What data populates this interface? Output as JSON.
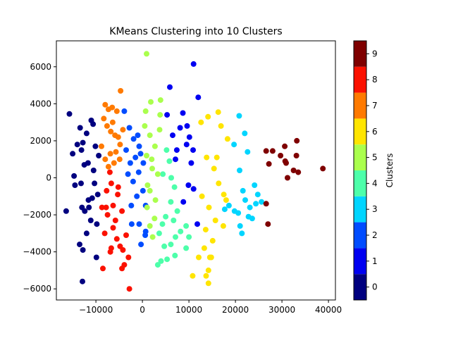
{
  "chart_data": {
    "type": "scatter",
    "title": "KMeans Clustering into 10 Clusters",
    "xlabel": "",
    "ylabel": "",
    "xlim": [
      -18500,
      41500
    ],
    "ylim": [
      -6600,
      7400
    ],
    "x_ticks": [
      -10000,
      0,
      10000,
      20000,
      30000,
      40000
    ],
    "x_tick_labels": [
      "−10000",
      "0",
      "10000",
      "20000",
      "30000",
      "40000"
    ],
    "y_ticks": [
      -6000,
      -4000,
      -2000,
      0,
      2000,
      4000,
      6000
    ],
    "y_tick_labels": [
      "−6000",
      "−4000",
      "−2000",
      "0",
      "2000",
      "4000",
      "6000"
    ],
    "grid": false,
    "colorbar": {
      "label": "Clusters",
      "ticks": [
        0,
        1,
        2,
        3,
        4,
        5,
        6,
        7,
        8,
        9
      ],
      "tick_labels": [
        "0",
        "1",
        "2",
        "3",
        "4",
        "5",
        "6",
        "7",
        "8",
        "9"
      ],
      "range": [
        -0.5,
        9.5
      ],
      "colors": [
        "#00007f",
        "#0000f1",
        "#004cff",
        "#00d5ff",
        "#4dffaa",
        "#aaff4d",
        "#ffe500",
        "#ff7a00",
        "#fb1100",
        "#7f0000"
      ]
    },
    "series": [
      {
        "cluster": 0,
        "points": [
          [
            -15700,
            3450
          ],
          [
            -15000,
            1300
          ],
          [
            -14000,
            1800
          ],
          [
            -13400,
            2700
          ],
          [
            -12800,
            1900
          ],
          [
            -12000,
            2400
          ],
          [
            -11000,
            3100
          ],
          [
            -10600,
            2900
          ],
          [
            -14500,
            -400
          ],
          [
            -13200,
            -300
          ],
          [
            -12500,
            700
          ],
          [
            -11600,
            -1200
          ],
          [
            -10500,
            400
          ],
          [
            -9600,
            -900
          ],
          [
            -12400,
            -1800
          ],
          [
            -13000,
            -1600
          ],
          [
            -11100,
            -2300
          ],
          [
            -10100,
            1700
          ],
          [
            -9800,
            -2500
          ],
          [
            -12000,
            -3000
          ],
          [
            -13500,
            -3600
          ],
          [
            -12800,
            -3900
          ],
          [
            -12900,
            -5600
          ],
          [
            -9900,
            -4300
          ],
          [
            -16400,
            -1800
          ],
          [
            -14700,
            100
          ],
          [
            -11700,
            800
          ],
          [
            -10300,
            -300
          ],
          [
            -9400,
            1200
          ],
          [
            -11500,
            -1600
          ],
          [
            -13100,
            1500
          ],
          [
            -10800,
            -1100
          ]
        ]
      },
      {
        "cluster": 1,
        "points": [
          [
            5900,
            4900
          ],
          [
            11000,
            6150
          ],
          [
            12000,
            4350
          ],
          [
            5300,
            3400
          ],
          [
            6500,
            2300
          ],
          [
            7400,
            1500
          ],
          [
            8100,
            2700
          ],
          [
            8700,
            3500
          ],
          [
            9500,
            1800
          ],
          [
            10100,
            2200
          ],
          [
            10500,
            800
          ],
          [
            9900,
            -400
          ],
          [
            11000,
            -600
          ],
          [
            8800,
            -1300
          ],
          [
            11800,
            -2500
          ],
          [
            9600,
            2800
          ],
          [
            7100,
            1000
          ],
          [
            10900,
            1500
          ]
        ]
      },
      {
        "cluster": 2,
        "points": [
          [
            -3900,
            3600
          ],
          [
            -2800,
            2700
          ],
          [
            -1900,
            2100
          ],
          [
            -700,
            1700
          ],
          [
            -1500,
            1100
          ],
          [
            -2600,
            800
          ],
          [
            -3100,
            200
          ],
          [
            -2000,
            -200
          ],
          [
            -800,
            300
          ],
          [
            100,
            -700
          ],
          [
            700,
            -1500
          ],
          [
            -1200,
            -1000
          ],
          [
            -2400,
            -1500
          ],
          [
            -700,
            -2500
          ],
          [
            600,
            -3100
          ],
          [
            -300,
            -3600
          ],
          [
            700,
            -2900
          ],
          [
            -3500,
            1500
          ],
          [
            -1000,
            2300
          ],
          [
            200,
            800
          ],
          [
            -2300,
            -2500
          ],
          [
            -400,
            1300
          ]
        ]
      },
      {
        "cluster": 3,
        "points": [
          [
            17700,
            -1700
          ],
          [
            18600,
            -1500
          ],
          [
            19800,
            -1800
          ],
          [
            20600,
            -1900
          ],
          [
            21000,
            -2600
          ],
          [
            21400,
            -3000
          ],
          [
            22100,
            -1200
          ],
          [
            22800,
            -2100
          ],
          [
            23600,
            -2200
          ],
          [
            24100,
            -400
          ],
          [
            24800,
            -900
          ],
          [
            24400,
            -1400
          ],
          [
            25600,
            -1300
          ],
          [
            20800,
            3350
          ],
          [
            20900,
            400
          ],
          [
            22000,
            2400
          ],
          [
            22600,
            1400
          ],
          [
            19700,
            1800
          ],
          [
            23100,
            -1600
          ],
          [
            21600,
            -700
          ]
        ]
      },
      {
        "cluster": 4,
        "points": [
          [
            5200,
            1500
          ],
          [
            5800,
            900
          ],
          [
            6200,
            0
          ],
          [
            6900,
            -500
          ],
          [
            6100,
            -1300
          ],
          [
            7500,
            -1800
          ],
          [
            5000,
            -2100
          ],
          [
            4300,
            -2500
          ],
          [
            3600,
            -3000
          ],
          [
            4700,
            -3700
          ],
          [
            6100,
            -3600
          ],
          [
            7100,
            -3200
          ],
          [
            8200,
            -2900
          ],
          [
            9400,
            -2600
          ],
          [
            10000,
            -3200
          ],
          [
            9400,
            -3800
          ],
          [
            7000,
            -4200
          ],
          [
            5300,
            -4400
          ],
          [
            4000,
            -4500
          ],
          [
            3300,
            -4700
          ],
          [
            4400,
            200
          ],
          [
            6700,
            -2300
          ]
        ]
      },
      {
        "cluster": 5,
        "points": [
          [
            700,
            3600
          ],
          [
            1800,
            4100
          ],
          [
            3800,
            3400
          ],
          [
            500,
            2800
          ],
          [
            1600,
            2300
          ],
          [
            2700,
            1700
          ],
          [
            3700,
            2600
          ],
          [
            900,
            1200
          ],
          [
            2100,
            500
          ],
          [
            3300,
            200
          ],
          [
            1600,
            -700
          ],
          [
            2800,
            -1200
          ],
          [
            1000,
            -1600
          ],
          [
            2600,
            -2200
          ],
          [
            1600,
            -2600
          ],
          [
            2200,
            -3200
          ],
          [
            900,
            6700
          ],
          [
            3900,
            4200
          ],
          [
            2000,
            1000
          ],
          [
            1100,
            -400
          ]
        ]
      },
      {
        "cluster": 6,
        "points": [
          [
            12600,
            3000
          ],
          [
            14100,
            3300
          ],
          [
            16300,
            3550
          ],
          [
            16900,
            2800
          ],
          [
            18300,
            2100
          ],
          [
            13800,
            1100
          ],
          [
            15400,
            500
          ],
          [
            16400,
            -300
          ],
          [
            17500,
            -900
          ],
          [
            12800,
            -1000
          ],
          [
            14300,
            -1600
          ],
          [
            15700,
            -2300
          ],
          [
            13600,
            -2800
          ],
          [
            15100,
            -3400
          ],
          [
            17400,
            -2600
          ],
          [
            13300,
            -3800
          ],
          [
            14500,
            -4300
          ],
          [
            12100,
            -4300
          ],
          [
            14800,
            -4300
          ],
          [
            10800,
            -5300
          ],
          [
            13700,
            -5300
          ],
          [
            14200,
            -5700
          ],
          [
            14200,
            -5000
          ],
          [
            18000,
            -1200
          ],
          [
            16000,
            1100
          ]
        ]
      },
      {
        "cluster": 7,
        "points": [
          [
            -4700,
            4700
          ],
          [
            -8000,
            3950
          ],
          [
            -7300,
            3700
          ],
          [
            -6500,
            3800
          ],
          [
            -5500,
            3600
          ],
          [
            -8300,
            3200
          ],
          [
            -7600,
            2800
          ],
          [
            -6800,
            2500
          ],
          [
            -5900,
            2300
          ],
          [
            -5200,
            2200
          ],
          [
            -4200,
            2600
          ],
          [
            -4800,
            1800
          ],
          [
            -6900,
            1300
          ],
          [
            -8000,
            1000
          ],
          [
            -8800,
            1700
          ],
          [
            -7300,
            600
          ],
          [
            -5700,
            1400
          ],
          [
            -6400,
            3000
          ],
          [
            -4900,
            1000
          ],
          [
            -6100,
            800
          ]
        ]
      },
      {
        "cluster": 8,
        "points": [
          [
            -6700,
            -300
          ],
          [
            -7700,
            -700
          ],
          [
            -8700,
            -1600
          ],
          [
            -7500,
            -2000
          ],
          [
            -6300,
            -1500
          ],
          [
            -5300,
            -900
          ],
          [
            -4400,
            -1800
          ],
          [
            -6300,
            -2700
          ],
          [
            -5500,
            -3300
          ],
          [
            -4800,
            -3700
          ],
          [
            -3500,
            -3100
          ],
          [
            -4200,
            -3900
          ],
          [
            -6700,
            -3800
          ],
          [
            -8100,
            -3000
          ],
          [
            -8500,
            -4900
          ],
          [
            -4400,
            -4900
          ],
          [
            -2800,
            -6000
          ],
          [
            -3000,
            -4300
          ],
          [
            -3900,
            -4700
          ],
          [
            -7800,
            -1600
          ],
          [
            -5800,
            -2300
          ],
          [
            -6900,
            -4000
          ],
          [
            -5200,
            -500
          ],
          [
            -7000,
            300
          ]
        ]
      },
      {
        "cluster": 9,
        "points": [
          [
            26600,
            1450
          ],
          [
            27200,
            750
          ],
          [
            28000,
            1450
          ],
          [
            29700,
            1200
          ],
          [
            30600,
            1700
          ],
          [
            30700,
            900
          ],
          [
            30900,
            800
          ],
          [
            31200,
            0
          ],
          [
            32500,
            400
          ],
          [
            33100,
            1200
          ],
          [
            33200,
            2000
          ],
          [
            33500,
            300
          ],
          [
            38800,
            500
          ],
          [
            26600,
            -1400
          ],
          [
            27000,
            -2500
          ]
        ]
      }
    ]
  }
}
